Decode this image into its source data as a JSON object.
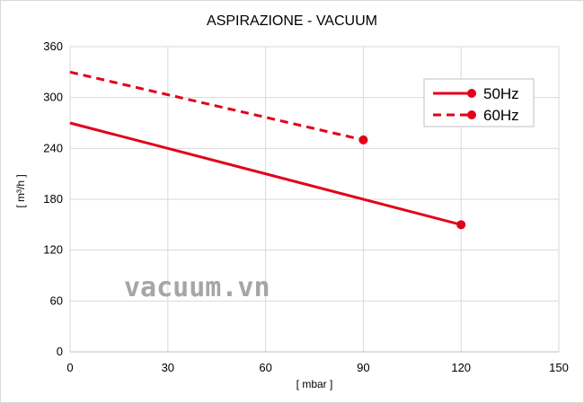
{
  "chart_data": {
    "type": "line",
    "title": "ASPIRAZIONE - VACUUM",
    "xlabel": "[ mbar ]",
    "ylabel": "[ m³/h ]",
    "xlim": [
      0,
      150
    ],
    "ylim": [
      0,
      360
    ],
    "xticks": [
      0,
      30,
      60,
      90,
      120,
      150
    ],
    "yticks": [
      0,
      60,
      120,
      180,
      240,
      300,
      360
    ],
    "grid": true,
    "legend_position": "top-right",
    "series": [
      {
        "name": "50Hz",
        "x": [
          0,
          120
        ],
        "y": [
          270,
          150
        ],
        "color": "#e2001a",
        "style": "solid",
        "end_marker": true
      },
      {
        "name": "60Hz",
        "x": [
          0,
          90
        ],
        "y": [
          330,
          250
        ],
        "color": "#e2001a",
        "style": "dashed",
        "end_marker": true
      }
    ]
  },
  "watermark": "vacuum.vn"
}
